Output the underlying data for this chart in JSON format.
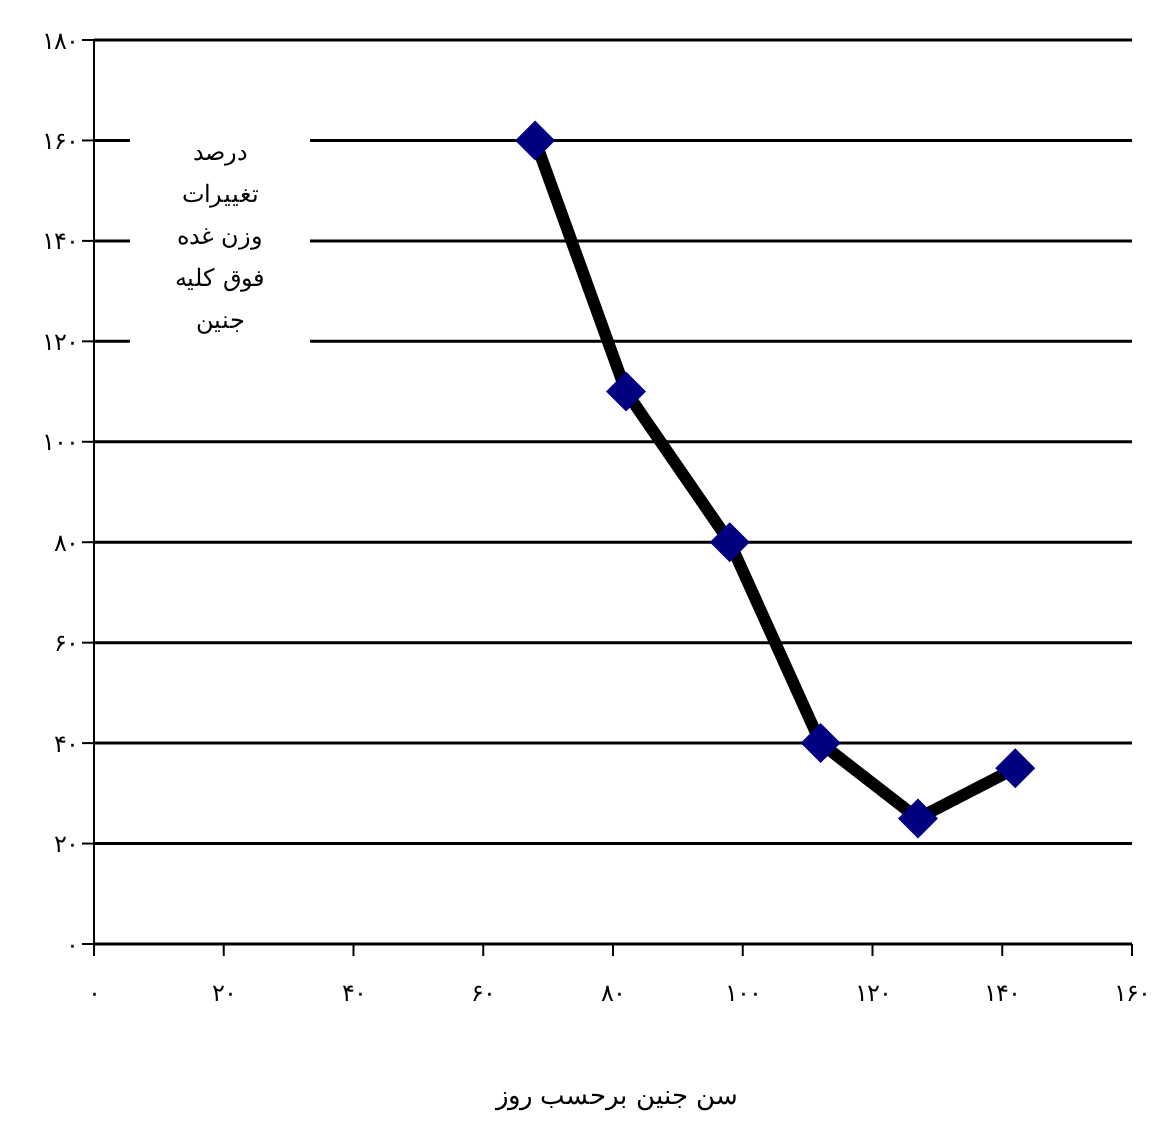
{
  "chart_data": {
    "type": "line",
    "xlabel": "سن جنین  برحسب روز",
    "ylabel": "درصد\nتغییرات\nوزن غده\nفوق کلیه\nجنین",
    "x": [
      68,
      82,
      98,
      112,
      127,
      142
    ],
    "series": [
      {
        "color": "#000000",
        "colors": [
          "#000080",
          "#000080",
          "#000080",
          "#000080",
          "#000080",
          "#000080"
        ],
        "values": [
          160,
          110,
          80,
          40,
          25,
          35
        ]
      }
    ],
    "xlim": [
      0,
      160
    ],
    "ylim": [
      0,
      180
    ],
    "xticks": [
      {
        "value": 0,
        "label": "۰"
      },
      {
        "value": 20,
        "label": "۲۰"
      },
      {
        "value": 40,
        "label": "۴۰"
      },
      {
        "value": 60,
        "label": "۶۰"
      },
      {
        "value": 80,
        "label": "۸۰"
      },
      {
        "value": 100,
        "label": "۱۰۰"
      },
      {
        "value": 120,
        "label": "۱۲۰"
      },
      {
        "value": 140,
        "label": "۱۴۰"
      },
      {
        "value": 160,
        "label": "۱۶۰"
      }
    ],
    "yticks": [
      {
        "value": 0,
        "label": "۰"
      },
      {
        "value": 20,
        "label": "۲۰"
      },
      {
        "value": 40,
        "label": "۴۰"
      },
      {
        "value": 60,
        "label": "۶۰"
      },
      {
        "value": 80,
        "label": "۸۰"
      },
      {
        "value": 100,
        "label": "۱۰۰"
      },
      {
        "value": 120,
        "label": "۱۲۰"
      },
      {
        "value": 140,
        "label": "۱۴۰"
      },
      {
        "value": 160,
        "label": "۱۶۰"
      },
      {
        "value": 180,
        "label": "۱۸۰"
      }
    ],
    "grid": "y",
    "marker": "diamond",
    "line_style": "solid"
  }
}
